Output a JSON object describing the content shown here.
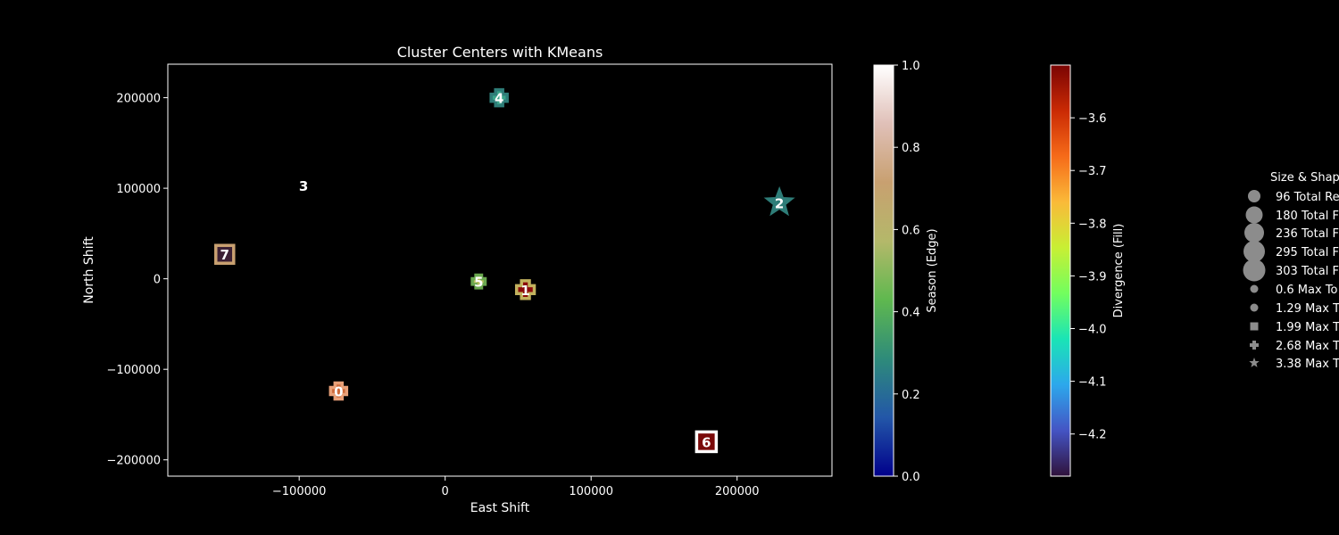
{
  "chart_data": {
    "type": "scatter",
    "title": "Cluster Centers with KMeans",
    "xlabel": "East Shift",
    "ylabel": "North Shift",
    "xlim": [
      -190000,
      265000
    ],
    "ylim": [
      -218000,
      237000
    ],
    "xticks": [
      -100000,
      0,
      100000,
      200000
    ],
    "yticks": [
      -200000,
      -100000,
      0,
      100000,
      200000
    ],
    "xtick_labels": [
      "−100000",
      "0",
      "100000",
      "200000"
    ],
    "ytick_labels": [
      "−200000",
      "−100000",
      "0",
      "100000",
      "200000"
    ],
    "points": [
      {
        "label": "0",
        "x": -73000,
        "y": -124000,
        "marker": "plus",
        "size": 1,
        "fill": "#cf6a3a",
        "edge": "#e8a078"
      },
      {
        "label": "1",
        "x": 55000,
        "y": -12000,
        "marker": "plus",
        "size": 1.1,
        "fill": "#8b0a0a",
        "edge": "#c2b25e"
      },
      {
        "label": "2",
        "x": 229000,
        "y": 84000,
        "marker": "star",
        "size": 1.2,
        "fill": "#2e7d78",
        "edge": "#2e7d78"
      },
      {
        "label": "3",
        "x": -97000,
        "y": 103000,
        "marker": "none",
        "size": 1,
        "fill": "#000000",
        "edge": "#000000"
      },
      {
        "label": "4",
        "x": 37000,
        "y": 200000,
        "marker": "plus",
        "size": 1,
        "fill": "#3aa58a",
        "edge": "#2e7d78"
      },
      {
        "label": "5",
        "x": 23000,
        "y": -3000,
        "marker": "plus",
        "size": 0.8,
        "fill": "#b8c060",
        "edge": "#6aa84f"
      },
      {
        "label": "6",
        "x": 179000,
        "y": -180000,
        "marker": "square",
        "size": 1.1,
        "fill": "#7a0a0a",
        "edge": "#ffffff"
      },
      {
        "label": "7",
        "x": -151000,
        "y": 27000,
        "marker": "square",
        "size": 1,
        "fill": "#3b1f33",
        "edge": "#c8a070"
      }
    ],
    "colorbars": [
      {
        "label": "Season (Edge)",
        "ticks": [
          "0.0",
          "0.2",
          "0.4",
          "0.6",
          "0.8",
          "1.0"
        ],
        "values": [
          0,
          0.2,
          0.4,
          0.6,
          0.8,
          1.0
        ],
        "range": [
          0,
          1
        ],
        "colors": [
          "#00008b",
          "#2357a8",
          "#2e8b7a",
          "#5fb84f",
          "#b4b86a",
          "#c8a070",
          "#e0c0b8",
          "#ffffff"
        ]
      },
      {
        "label": "Divergence (Fill)",
        "ticks": [
          "−4.2",
          "−4.1",
          "−4.0",
          "−3.9",
          "−3.8",
          "−3.7",
          "−3.6"
        ],
        "values": [
          -4.2,
          -4.1,
          -4.0,
          -3.9,
          -3.8,
          -3.7,
          -3.6
        ],
        "range": [
          -4.28,
          -3.5
        ],
        "colors": [
          "#30123b",
          "#4454c4",
          "#2ca8ec",
          "#1ae4b6",
          "#72fe5e",
          "#c8ef34",
          "#faba39",
          "#f66b19",
          "#ca2a04",
          "#7a0403"
        ]
      }
    ],
    "legend": {
      "title": "Size & Shap",
      "placement": "right",
      "entries": [
        {
          "label": "96 Total Re",
          "marker": "circle",
          "size": 7
        },
        {
          "label": "180 Total F",
          "marker": "circle",
          "size": 9.5
        },
        {
          "label": "236 Total F",
          "marker": "circle",
          "size": 11
        },
        {
          "label": "295 Total F",
          "marker": "circle",
          "size": 12
        },
        {
          "label": "303 Total F",
          "marker": "circle",
          "size": 12.5
        },
        {
          "label": "0.6 Max To",
          "marker": "circle",
          "size": 4.5
        },
        {
          "label": "1.29 Max T",
          "marker": "circle-small",
          "size": 4.5
        },
        {
          "label": "1.99 Max T",
          "marker": "square",
          "size": 4.5
        },
        {
          "label": "2.68 Max T",
          "marker": "plus",
          "size": 5
        },
        {
          "label": "3.38 Max T",
          "marker": "star",
          "size": 5
        }
      ]
    }
  }
}
